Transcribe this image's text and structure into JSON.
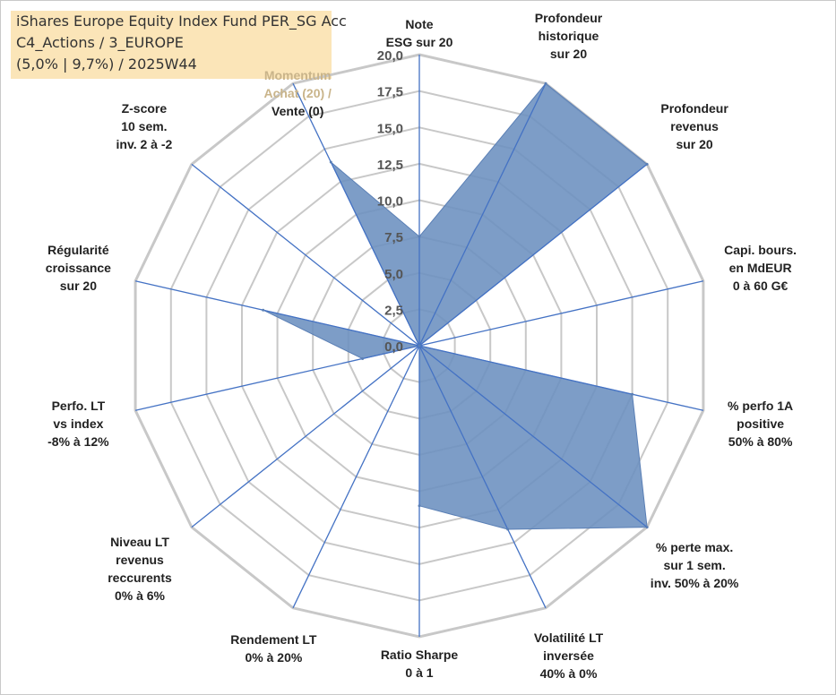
{
  "info": {
    "line1": "iShares Europe Equity Index Fund PER_SG Acc",
    "line2": "C4_Actions / 3_EUROPE",
    "line3": "(5,0% | 9,7%) / 2025W44"
  },
  "chart_data": {
    "type": "radar",
    "scale": [
      0,
      20
    ],
    "ticks": [
      "0,0",
      "2,5",
      "5,0",
      "7,5",
      "10,0",
      "12,5",
      "15,0",
      "17,5",
      "20,0"
    ],
    "grid": true,
    "axes": [
      {
        "label": [
          "Note",
          "ESG sur 20"
        ],
        "value": 7.5
      },
      {
        "label": [
          "Profondeur",
          "historique",
          "sur 20"
        ],
        "value": 20
      },
      {
        "label": [
          "Profondeur",
          "revenus",
          "sur 20"
        ],
        "value": 20
      },
      {
        "label": [
          "Capi. bours.",
          "en MdEUR",
          "0 à 60 G€"
        ],
        "value": 0
      },
      {
        "label": [
          "% perfo 1A",
          "positive",
          "50% à 80%"
        ],
        "value": 15
      },
      {
        "label": [
          "% perte max.",
          "sur 1 sem.",
          "inv. 50% à 20%"
        ],
        "value": 20
      },
      {
        "label": [
          "Volatilité LT",
          "inversée",
          "40% à 0%"
        ],
        "value": 14
      },
      {
        "label": [
          "Ratio Sharpe",
          "0 à 1"
        ],
        "value": 11
      },
      {
        "label": [
          "Rendement LT",
          "0% à 20%"
        ],
        "value": 0
      },
      {
        "label": [
          "Niveau LT",
          "revenus",
          "reccurents",
          "0% à 6%"
        ],
        "value": 0
      },
      {
        "label": [
          "Perfo. LT",
          "vs index",
          "-8% à 12%"
        ],
        "value": 4
      },
      {
        "label": [
          "Régularité",
          "croissance",
          "sur 20"
        ],
        "value": 11
      },
      {
        "label": [
          "Z-score",
          "10 sem.",
          "inv. 2 à -2"
        ],
        "value": 0
      },
      {
        "label": [
          "Momentum",
          "Achat (20) /",
          "Vente (0)"
        ],
        "value": 14
      }
    ],
    "fill_color": "#6b8fbf",
    "line_color": "#4472c4",
    "grid_color": "#c8c8c8"
  }
}
